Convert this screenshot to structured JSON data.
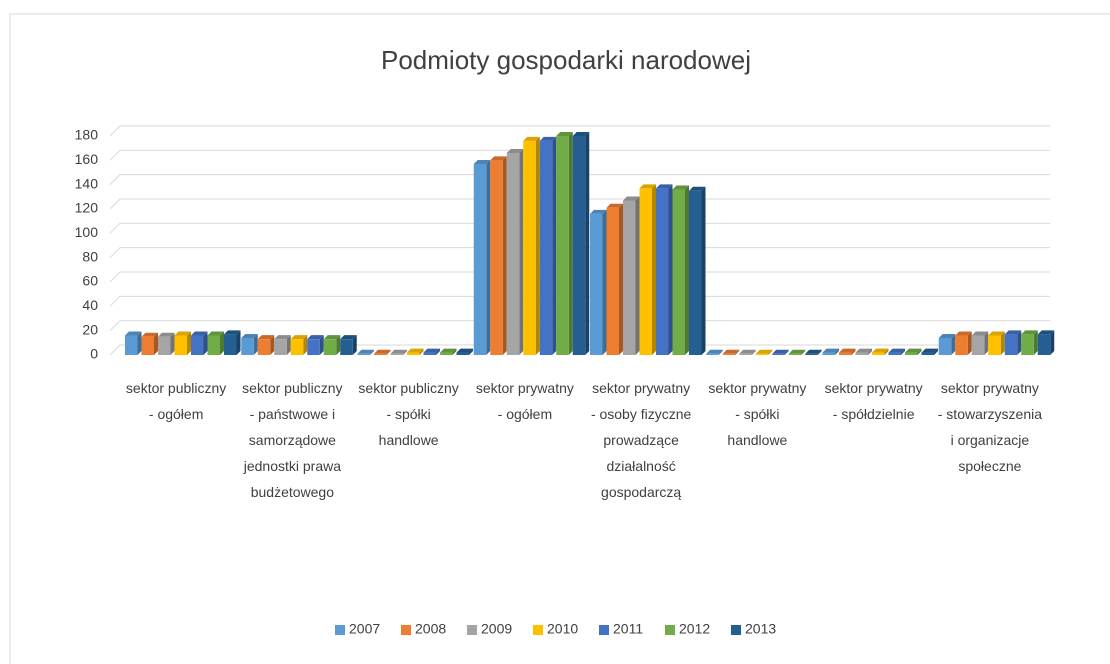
{
  "chart_data": {
    "type": "bar",
    "title": "Podmioty gospodarki narodowej",
    "categories": [
      "sektor publiczny - ogółem",
      "sektor publiczny - państwowe i samorządowe jednostki prawa budżetowego",
      "sektor publiczny - spółki handlowe",
      "sektor prywatny - ogółem",
      "sektor prywatny - osoby fizyczne prowadzące działalność gospodarczą",
      "sektor prywatny - spółki handlowe",
      "sektor prywatny - spółdzielnie",
      "sektor prywatny - stowarzyszenia i organizacje społeczne"
    ],
    "series": [
      {
        "name": "2007",
        "color": "#5b9bd5",
        "values": [
          16,
          14,
          1,
          157,
          116,
          1,
          2,
          14
        ]
      },
      {
        "name": "2008",
        "color": "#ed7d31",
        "values": [
          15,
          13,
          1,
          160,
          121,
          1,
          2,
          16
        ]
      },
      {
        "name": "2009",
        "color": "#a5a5a5",
        "values": [
          15,
          13,
          1,
          166,
          127,
          1,
          2,
          16
        ]
      },
      {
        "name": "2010",
        "color": "#ffc000",
        "values": [
          16,
          13,
          2,
          176,
          137,
          1,
          2,
          16
        ]
      },
      {
        "name": "2011",
        "color": "#4472c4",
        "values": [
          16,
          13,
          2,
          176,
          137,
          1,
          2,
          17
        ]
      },
      {
        "name": "2012",
        "color": "#70ad47",
        "values": [
          16,
          13,
          2,
          180,
          136,
          1,
          2,
          17
        ]
      },
      {
        "name": "2013",
        "color": "#255e91",
        "values": [
          17,
          13,
          2,
          180,
          135,
          1,
          2,
          17
        ]
      }
    ],
    "ylim": [
      0,
      180
    ],
    "yticks": [
      0,
      20,
      40,
      60,
      80,
      100,
      120,
      140,
      160,
      180
    ],
    "grid": true,
    "legend": "bottom"
  }
}
